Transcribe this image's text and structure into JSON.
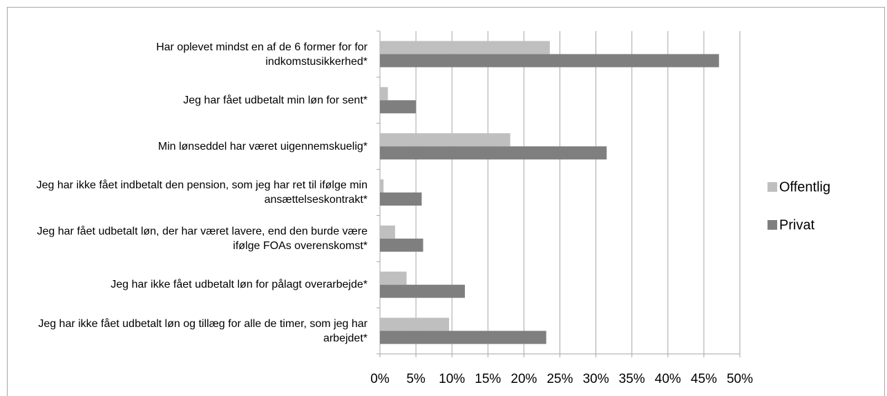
{
  "chart_data": {
    "type": "barh",
    "categories": [
      "Har oplevet mindst en af de 6 former for for indkomstusikkerhed*",
      "Jeg har fået udbetalt min løn for sent*",
      "Min lønseddel har været uigennemskuelig*",
      "Jeg har ikke fået indbetalt den pension, som jeg har ret til ifølge min ansættelseskontrakt*",
      "Jeg har fået udbetalt løn, der har været lavere, end den burde være ifølge FOAs overenskomst*",
      "Jeg har ikke fået udbetalt løn for pålagt overarbejde*",
      "Jeg har ikke fået udbetalt løn og tillæg for alle de timer, som jeg har arbejdet*"
    ],
    "series": [
      {
        "name": "Offentlig",
        "color": "#bfbfbf",
        "values": [
          23.6,
          1.1,
          18.1,
          0.5,
          2.1,
          3.7,
          9.6
        ]
      },
      {
        "name": "Privat",
        "color": "#7f7f7f",
        "values": [
          47.1,
          5.0,
          31.5,
          5.8,
          6.0,
          11.8,
          23.1
        ]
      }
    ],
    "xlim": [
      0,
      50
    ],
    "xticks": [
      {
        "value": 0,
        "label": "0%"
      },
      {
        "value": 5,
        "label": "5%"
      },
      {
        "value": 10,
        "label": "10%"
      },
      {
        "value": 15,
        "label": "15%"
      },
      {
        "value": 20,
        "label": "20%"
      },
      {
        "value": 25,
        "label": "25%"
      },
      {
        "value": 30,
        "label": "30%"
      },
      {
        "value": 35,
        "label": "35%"
      },
      {
        "value": 40,
        "label": "40%"
      },
      {
        "value": 45,
        "label": "45%"
      },
      {
        "value": 50,
        "label": "50%"
      }
    ],
    "grid": true,
    "legend": "right"
  }
}
